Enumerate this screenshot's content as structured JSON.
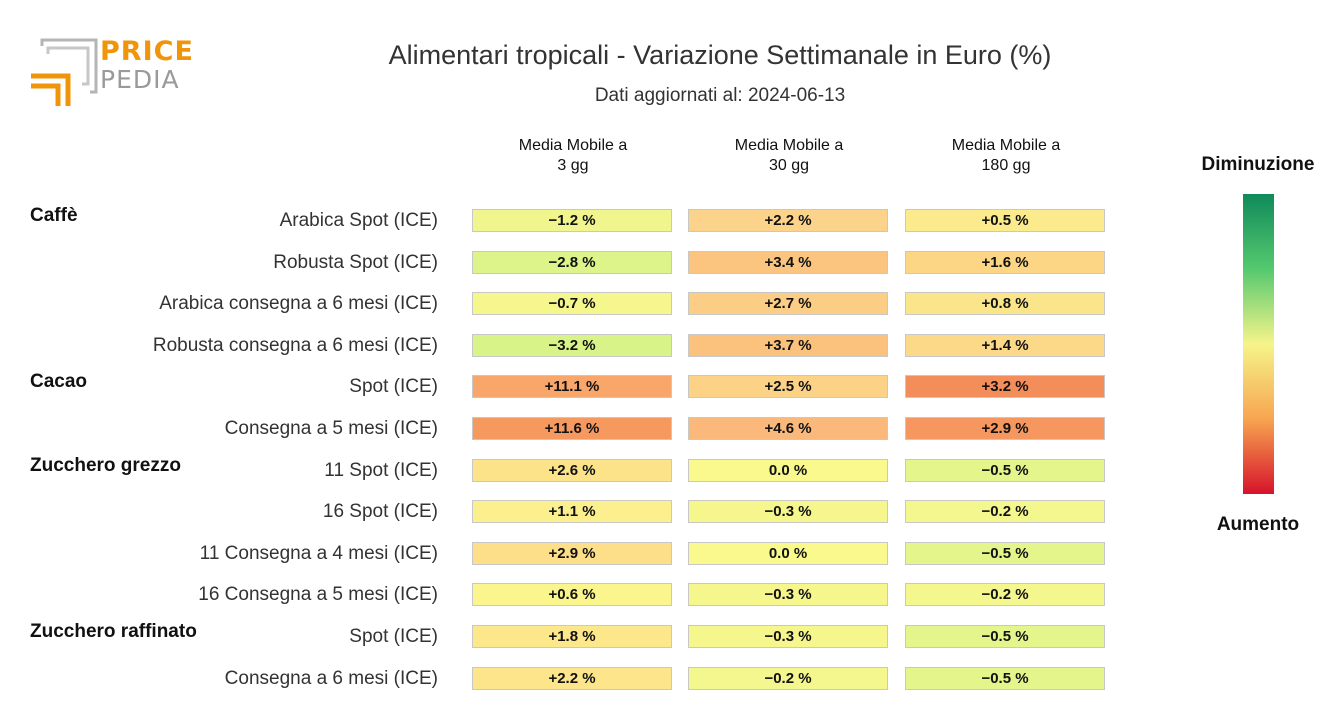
{
  "logo": {
    "line1": "PRICE",
    "line2": "PEDIA"
  },
  "chart_data": {
    "type": "table",
    "title": "Alimentari tropicali - Variazione Settimanale in Euro (%)",
    "subtitle": "Dati aggiornati al: 2024-06-13",
    "columns": [
      "Media Mobile a\n3 gg",
      "Media Mobile a\n30 gg",
      "Media Mobile a\n180 gg"
    ],
    "color_scale": {
      "top_label": "Diminuzione",
      "bottom_label": "Aumento"
    },
    "groups": [
      {
        "name": "Caffè",
        "rows": [
          {
            "label": "Arabica Spot (ICE)",
            "values": [
              -1.2,
              2.2,
              0.5
            ],
            "texts": [
              "−1.2 %",
              "+2.2 %",
              "+0.5 %"
            ],
            "colors": [
              "#f1f58e",
              "#fcd38a",
              "#fbeb8c"
            ]
          },
          {
            "label": "Robusta Spot (ICE)",
            "values": [
              -2.8,
              3.4,
              1.6
            ],
            "texts": [
              "−2.8 %",
              "+3.4 %",
              "+1.6 %"
            ],
            "colors": [
              "#dcf48a",
              "#fcc57f",
              "#fcd585"
            ]
          },
          {
            "label": "Arabica consegna a 6 mesi (ICE)",
            "values": [
              -0.7,
              2.7,
              0.8
            ],
            "texts": [
              "−0.7 %",
              "+2.7 %",
              "+0.8 %"
            ],
            "colors": [
              "#f5f78d",
              "#fccd85",
              "#fbe58a"
            ]
          },
          {
            "label": "Robusta consegna a 6 mesi (ICE)",
            "values": [
              -3.2,
              3.7,
              1.4
            ],
            "texts": [
              "−3.2 %",
              "+3.7 %",
              "+1.4 %"
            ],
            "colors": [
              "#d8f388",
              "#fbc27d",
              "#fbd988"
            ]
          }
        ]
      },
      {
        "name": "Cacao",
        "rows": [
          {
            "label": "Spot (ICE)",
            "values": [
              11.1,
              2.5,
              3.2
            ],
            "texts": [
              "+11.1 %",
              "+2.5 %",
              "+3.2 %"
            ],
            "colors": [
              "#f9a66b",
              "#fcd286",
              "#f38d5a"
            ]
          },
          {
            "label": "Consegna a 5 mesi (ICE)",
            "values": [
              11.6,
              4.6,
              2.9
            ],
            "texts": [
              "+11.6 %",
              "+4.6 %",
              "+2.9 %"
            ],
            "colors": [
              "#f6995f",
              "#fab97a",
              "#f5975e"
            ]
          }
        ]
      },
      {
        "name": "Zucchero grezzo",
        "rows": [
          {
            "label": "11 Spot (ICE)",
            "values": [
              2.6,
              0.0,
              -0.5
            ],
            "texts": [
              "+2.6 %",
              "0.0 %",
              "−0.5 %"
            ],
            "colors": [
              "#fce38a",
              "#f9f98d",
              "#e4f58c"
            ]
          },
          {
            "label": "16 Spot (ICE)",
            "values": [
              1.1,
              -0.3,
              -0.2
            ],
            "texts": [
              "+1.1 %",
              "−0.3 %",
              "−0.2 %"
            ],
            "colors": [
              "#fbf08d",
              "#f5f78d",
              "#f4f78d"
            ]
          },
          {
            "label": "11 Consegna a 4 mesi (ICE)",
            "values": [
              2.9,
              0.0,
              -0.5
            ],
            "texts": [
              "+2.9 %",
              "0.0 %",
              "−0.5 %"
            ],
            "colors": [
              "#fcdf88",
              "#f9f98d",
              "#e4f58c"
            ]
          },
          {
            "label": "16 Consegna a 5 mesi (ICE)",
            "values": [
              0.6,
              -0.3,
              -0.2
            ],
            "texts": [
              "+0.6 %",
              "−0.3 %",
              "−0.2 %"
            ],
            "colors": [
              "#fbf58d",
              "#f5f78d",
              "#f4f78d"
            ]
          }
        ]
      },
      {
        "name": "Zucchero raffinato",
        "rows": [
          {
            "label": "Spot (ICE)",
            "values": [
              1.8,
              -0.3,
              -0.5
            ],
            "texts": [
              "+1.8 %",
              "−0.3 %",
              "−0.5 %"
            ],
            "colors": [
              "#fce88b",
              "#f5f78d",
              "#e4f58c"
            ]
          },
          {
            "label": "Consegna a 6 mesi (ICE)",
            "values": [
              2.2,
              -0.2,
              -0.5
            ],
            "texts": [
              "+2.2 %",
              "−0.2 %",
              "−0.5 %"
            ],
            "colors": [
              "#fce58a",
              "#f4f78d",
              "#e4f58c"
            ]
          }
        ]
      }
    ]
  }
}
